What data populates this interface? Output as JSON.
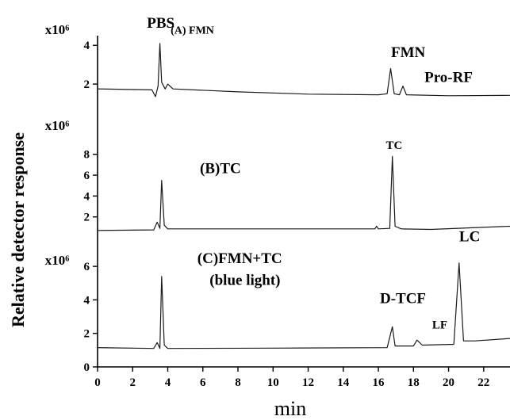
{
  "chart_data": {
    "type": "line",
    "title": "",
    "xlabel": "min",
    "ylabel": "Relative detector response",
    "x_ticks": [
      0,
      2,
      4,
      6,
      8,
      10,
      12,
      14,
      16,
      18,
      20,
      22
    ],
    "xlim": [
      0,
      23.5
    ],
    "panels": [
      {
        "id": "A",
        "multiplier": "x10⁶",
        "yticks": [
          2,
          4
        ],
        "ylim": [
          0,
          4.5
        ],
        "labels": [
          {
            "text": "PBS",
            "x": 3.6,
            "y": 4.9
          },
          {
            "text": "(A) FMN",
            "x": 5.4,
            "y": 4.6
          },
          {
            "text": "FMN",
            "x": 17.7,
            "y": 3.4
          },
          {
            "text": "Pro-RF",
            "x": 20.0,
            "y": 2.1
          }
        ],
        "points": [
          [
            0,
            1.75
          ],
          [
            3.1,
            1.7
          ],
          [
            3.3,
            1.35
          ],
          [
            3.45,
            1.9
          ],
          [
            3.55,
            4.1
          ],
          [
            3.65,
            2.1
          ],
          [
            3.85,
            1.75
          ],
          [
            4.0,
            2.0
          ],
          [
            4.3,
            1.75
          ],
          [
            8,
            1.6
          ],
          [
            12,
            1.48
          ],
          [
            16,
            1.45
          ],
          [
            16.5,
            1.5
          ],
          [
            16.7,
            2.8
          ],
          [
            16.9,
            1.5
          ],
          [
            17.2,
            1.45
          ],
          [
            17.4,
            1.9
          ],
          [
            17.6,
            1.45
          ],
          [
            20,
            1.4
          ],
          [
            23.5,
            1.42
          ]
        ]
      },
      {
        "id": "B",
        "multiplier": "x10⁶",
        "yticks": [
          2,
          4,
          6,
          8
        ],
        "ylim": [
          0,
          9.5
        ],
        "labels": [
          {
            "text": "(B)TC",
            "x": 7.0,
            "y": 6.2
          },
          {
            "text": "TC",
            "x": 16.9,
            "y": 8.5
          }
        ],
        "points": [
          [
            0,
            0.7
          ],
          [
            3.2,
            0.75
          ],
          [
            3.4,
            1.5
          ],
          [
            3.55,
            0.9
          ],
          [
            3.65,
            5.5
          ],
          [
            3.8,
            1.2
          ],
          [
            4.0,
            0.85
          ],
          [
            10,
            0.85
          ],
          [
            15.8,
            0.85
          ],
          [
            15.9,
            1.1
          ],
          [
            16.0,
            0.85
          ],
          [
            16.65,
            0.9
          ],
          [
            16.8,
            7.8
          ],
          [
            16.95,
            1.1
          ],
          [
            17.3,
            0.85
          ],
          [
            19,
            0.8
          ],
          [
            23.5,
            1.1
          ]
        ]
      },
      {
        "id": "C",
        "multiplier": "x10⁶",
        "yticks": [
          0,
          2,
          4,
          6
        ],
        "ylim": [
          0,
          7
        ],
        "labels": [
          {
            "text": "(C)FMN+TC",
            "x": 8.1,
            "y": 6.2
          },
          {
            "text": "(blue light)",
            "x": 8.4,
            "y": 4.9
          },
          {
            "text": "D-TCF",
            "x": 17.4,
            "y": 3.8
          },
          {
            "text": "LC",
            "x": 21.2,
            "y": 7.5
          },
          {
            "text": "LF",
            "x": 19.5,
            "y": 2.3
          }
        ],
        "points": [
          [
            0,
            1.15
          ],
          [
            3.2,
            1.1
          ],
          [
            3.4,
            1.45
          ],
          [
            3.55,
            1.1
          ],
          [
            3.65,
            5.4
          ],
          [
            3.8,
            1.3
          ],
          [
            4.0,
            1.1
          ],
          [
            10,
            1.12
          ],
          [
            16.5,
            1.15
          ],
          [
            16.8,
            2.4
          ],
          [
            16.95,
            1.25
          ],
          [
            18.0,
            1.25
          ],
          [
            18.2,
            1.6
          ],
          [
            18.5,
            1.3
          ],
          [
            20.3,
            1.35
          ],
          [
            20.6,
            6.2
          ],
          [
            20.85,
            1.55
          ],
          [
            21.5,
            1.55
          ],
          [
            23.5,
            1.7
          ]
        ]
      }
    ]
  }
}
